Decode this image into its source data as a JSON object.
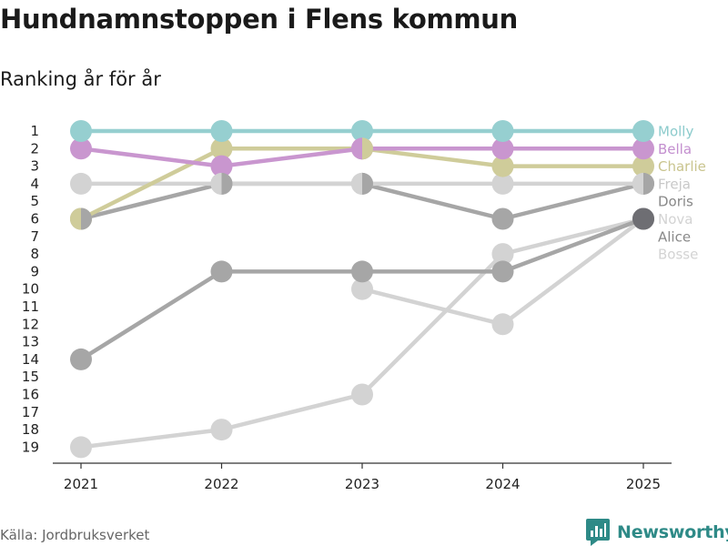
{
  "header": {
    "title": "Hundnamnstoppen i Flens kommun",
    "subtitle": "Ranking år för år"
  },
  "footer": {
    "source": "Källa: Jordbruksverket",
    "brand": "Newsworthy",
    "brand_icon": "bar-chart-icon",
    "brand_color": "#2e8a87"
  },
  "chart_data": {
    "type": "line",
    "subtype": "bump-chart",
    "title": "Hundnamnstoppen i Flens kommun",
    "subtitle": "Ranking år för år",
    "xlabel": "",
    "ylabel": "",
    "x": [
      2021,
      2022,
      2023,
      2024,
      2025
    ],
    "y_ticks": [
      1,
      2,
      3,
      4,
      5,
      6,
      7,
      8,
      9,
      10,
      11,
      12,
      13,
      14,
      15,
      16,
      17,
      18,
      19
    ],
    "ylim": [
      19,
      1
    ],
    "y_inverted": true,
    "grid": false,
    "legend": "right end labels",
    "series": [
      {
        "name": "Bosse",
        "color": "#d3d3d3",
        "label_color": "#d3d3d3",
        "values": [
          19,
          18,
          16,
          8,
          6
        ]
      },
      {
        "name": "Nova",
        "color": "#d3d3d3",
        "label_color": "#d3d3d3",
        "values": [
          null,
          null,
          10,
          12,
          6
        ]
      },
      {
        "name": "Doris",
        "color": "#a6a6a6",
        "label_color": "#888888",
        "values": [
          14,
          9,
          9,
          9,
          6
        ]
      },
      {
        "name": "Alice",
        "color": "#a6a6a6",
        "label_color": "#888888",
        "values": [
          6,
          4,
          4,
          6,
          4
        ]
      },
      {
        "name": "Freja",
        "color": "#d3d3d3",
        "label_color": "#c8c8c8",
        "values": [
          4,
          4,
          4,
          4,
          4
        ]
      },
      {
        "name": "Charlie",
        "color": "#cfcc9a",
        "label_color": "#c9c48e",
        "values": [
          6,
          2,
          2,
          3,
          3
        ]
      },
      {
        "name": "Bella",
        "color": "#c996cf",
        "label_color": "#c38fcf",
        "values": [
          2,
          3,
          2,
          2,
          2
        ]
      },
      {
        "name": "Molly",
        "color": "#96cfd0",
        "label_color": "#8ccbcc",
        "values": [
          1,
          1,
          1,
          1,
          1
        ]
      }
    ],
    "end_labels": [
      "Molly",
      "Bella",
      "Charlie",
      "Freja",
      "Doris",
      "Nova",
      "Alice",
      "Bosse"
    ],
    "end_label_colors": [
      "#8ccbcc",
      "#c38fcf",
      "#c9c48e",
      "#c8c8c8",
      "#888888",
      "#d3d3d3",
      "#888888",
      "#d3d3d3"
    ],
    "split_markers": [
      {
        "x": 2021,
        "rank": 6,
        "colors": [
          "#cfcc9a",
          "#a6a6a6"
        ]
      },
      {
        "x": 2022,
        "rank": 4,
        "colors": [
          "#d3d3d3",
          "#a6a6a6"
        ]
      },
      {
        "x": 2023,
        "rank": 4,
        "colors": [
          "#d3d3d3",
          "#a6a6a6"
        ]
      },
      {
        "x": 2023,
        "rank": 2,
        "colors": [
          "#c996cf",
          "#cfcc9a"
        ]
      },
      {
        "x": 2025,
        "rank": 4,
        "colors": [
          "#d3d3d3",
          "#a6a6a6"
        ]
      }
    ],
    "overlap_markers": [
      {
        "x": 2025,
        "rank": 6,
        "color": "#6e6e73"
      }
    ]
  }
}
